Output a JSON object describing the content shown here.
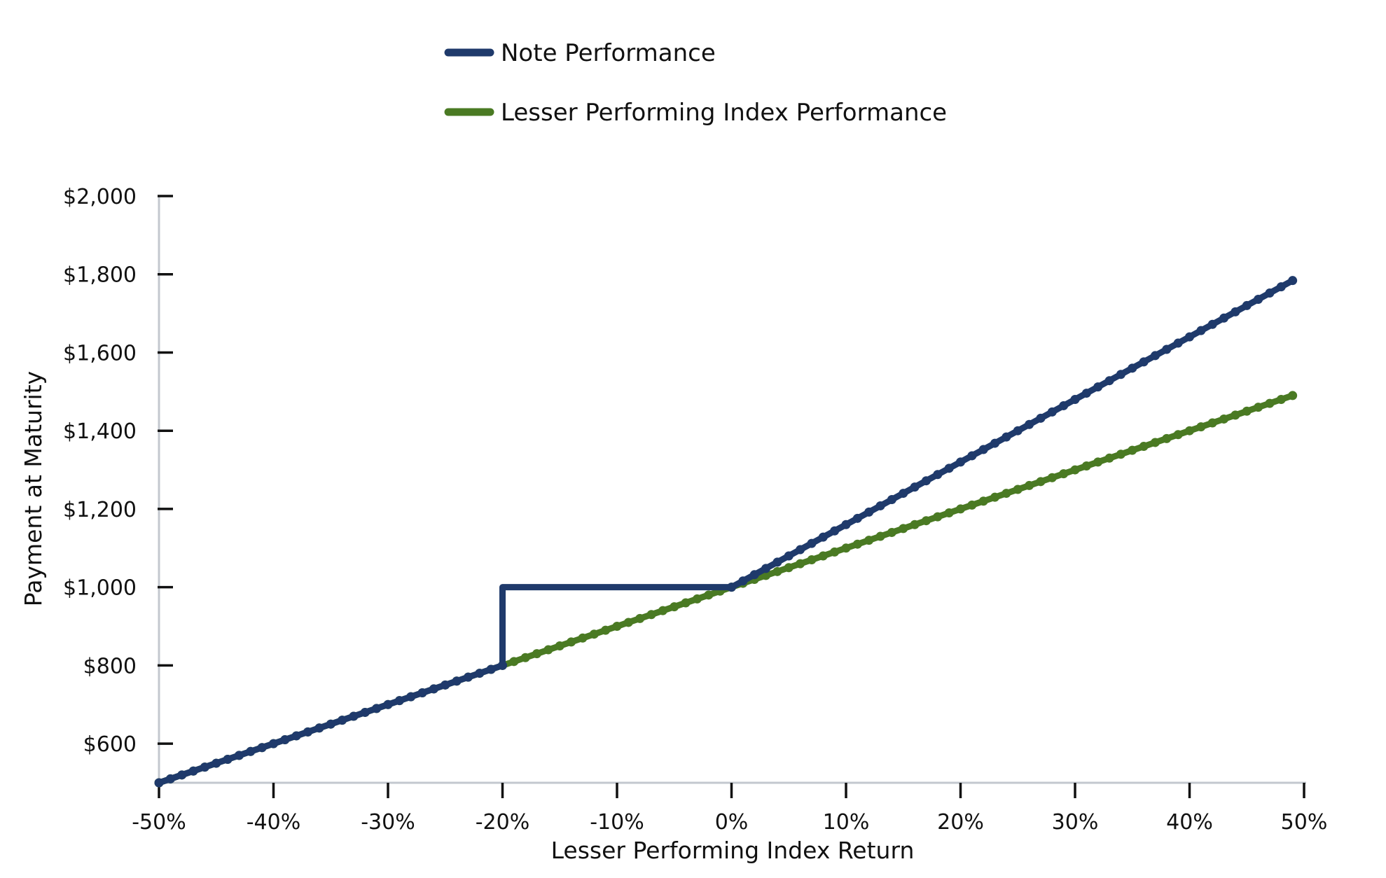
{
  "chart_data": {
    "type": "line",
    "title": "",
    "xlabel": "Lesser Performing Index Return",
    "ylabel": "Payment at Maturity",
    "xlim": [
      -50,
      50
    ],
    "ylim": [
      500,
      2000
    ],
    "x_ticks": [
      -50,
      -40,
      -30,
      -20,
      -10,
      0,
      10,
      20,
      30,
      40,
      50
    ],
    "x_tick_labels": [
      "-50%",
      "-40%",
      "-30%",
      "-20%",
      "-10%",
      "0%",
      "10%",
      "20%",
      "30%",
      "40%",
      "50%"
    ],
    "y_ticks": [
      600,
      800,
      1000,
      1200,
      1400,
      1600,
      1800,
      2000
    ],
    "y_tick_labels": [
      "$600",
      "$800",
      "$1,000",
      "$1,200",
      "$1,400",
      "$1,600",
      "$1,800",
      "$2,000"
    ],
    "grid": false,
    "legend_position": "top-center",
    "series": [
      {
        "name": "Note Performance",
        "color": "#1f3a6b",
        "points": [
          [
            -50,
            500
          ],
          [
            -20,
            800
          ],
          [
            -20,
            1000
          ],
          [
            0,
            1000
          ],
          [
            49,
            1784
          ]
        ]
      },
      {
        "name": "Lesser Performing Index Performance",
        "color": "#4a7a23",
        "points": [
          [
            -50,
            500
          ],
          [
            49,
            1490
          ]
        ]
      }
    ],
    "axis_color": "#c3c8cf"
  }
}
